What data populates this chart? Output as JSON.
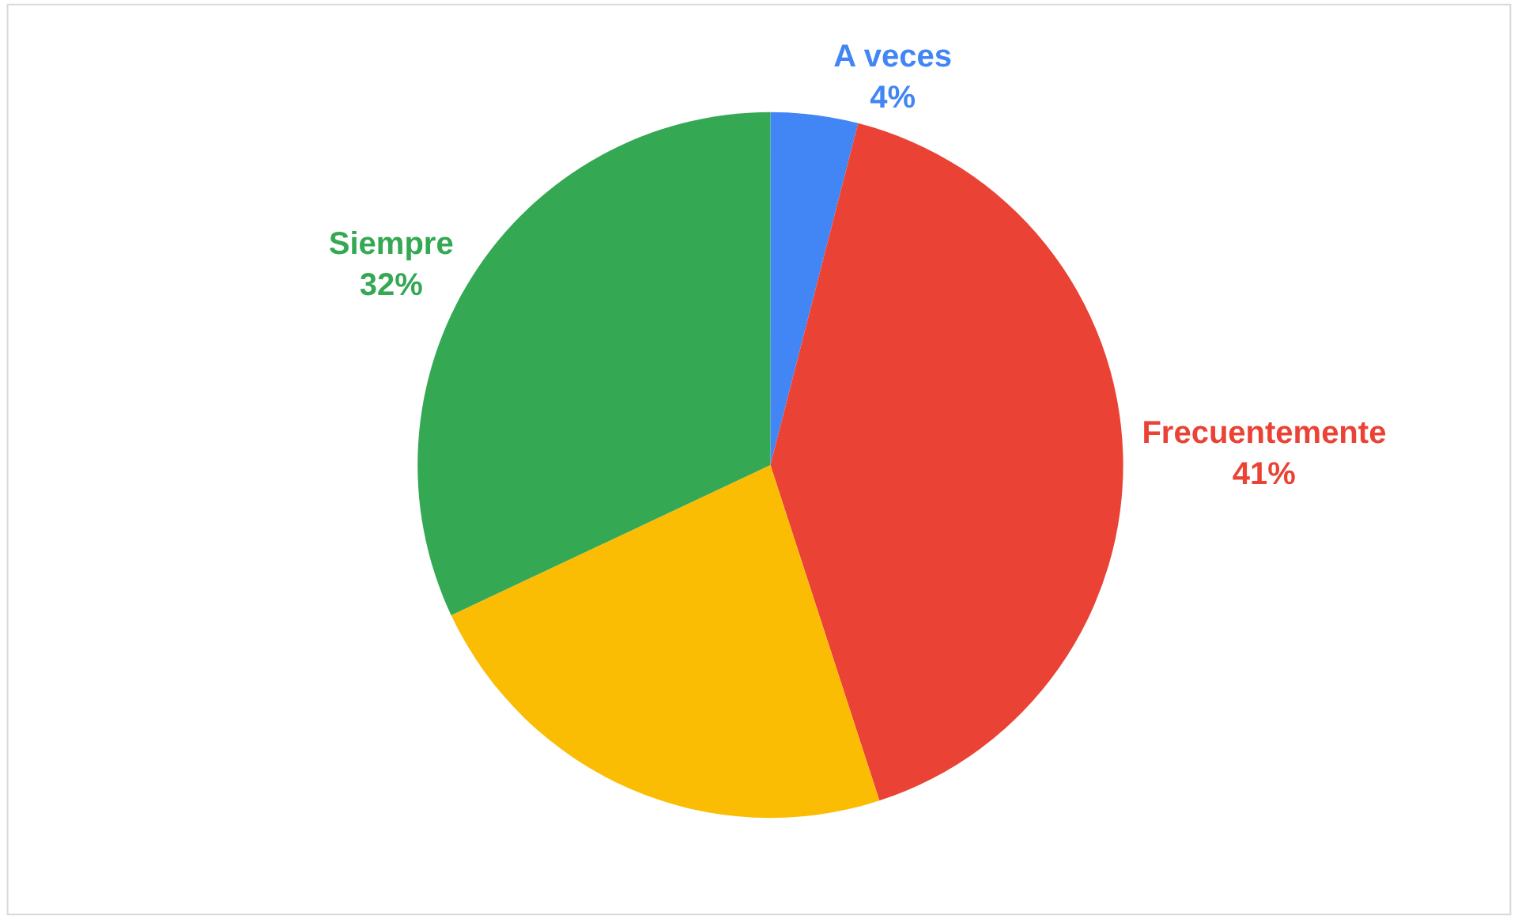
{
  "chart_data": {
    "type": "pie",
    "categories": [
      "A veces",
      "Frecuentemente",
      null,
      "Siempre"
    ],
    "values": [
      4,
      41,
      23,
      32
    ],
    "value_labels": [
      "4%",
      "41%",
      null,
      "32%"
    ],
    "colors": [
      "#4285f4",
      "#ea4335",
      "#fbbc04",
      "#34a853"
    ],
    "legend": false
  }
}
